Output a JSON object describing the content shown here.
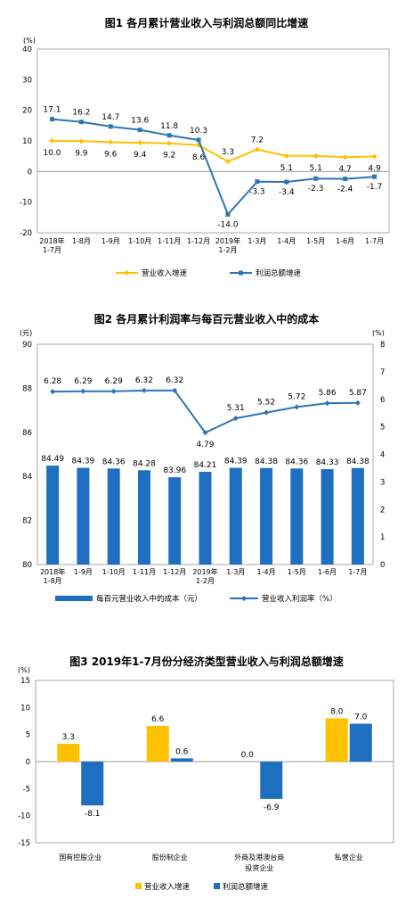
{
  "colors": {
    "orange": "#FFC000",
    "blue": "#2E75B6",
    "blue_bar": "#1F6FC0"
  },
  "chart_data": [
    {
      "type": "line",
      "title": "图1  各月累计营业收入与利润总额同比增速",
      "yunit": "(%)",
      "ylim": [
        -20,
        40
      ],
      "yticks": [
        "40",
        "30",
        "20",
        "10",
        "0",
        "-10",
        "-20"
      ],
      "categories": [
        [
          "2018年",
          "1-7月"
        ],
        [
          "1-8月"
        ],
        [
          "1-9月"
        ],
        [
          "1-10月"
        ],
        [
          "1-11月"
        ],
        [
          "1-12月"
        ],
        [
          "2019年",
          "1-2月"
        ],
        [
          "1-3月"
        ],
        [
          "1-4月"
        ],
        [
          "1-5月"
        ],
        [
          "1-6月"
        ],
        [
          "1-7月"
        ]
      ],
      "series": [
        {
          "name": "营业收入增速",
          "color": "#FFC000",
          "values": [
            10.0,
            9.9,
            9.6,
            9.4,
            9.2,
            8.6,
            3.3,
            7.2,
            5.1,
            5.1,
            4.7,
            4.9
          ],
          "labels": [
            "10.0",
            "9.9",
            "9.6",
            "9.4",
            "9.2",
            "8.6",
            "3.3",
            "7.2",
            "5.1",
            "5.1",
            "4.7",
            "4.9"
          ]
        },
        {
          "name": "利润总额增速",
          "color": "#2E75B6",
          "values": [
            17.1,
            16.2,
            14.7,
            13.6,
            11.8,
            10.3,
            -14.0,
            -3.3,
            -3.4,
            -2.3,
            -2.4,
            -1.7
          ],
          "labels": [
            "17.1",
            "16.2",
            "14.7",
            "13.6",
            "11.8",
            "10.3",
            "-14.0",
            "-3.3",
            "-3.4",
            "-2.3",
            "-2.4",
            "-1.7"
          ]
        }
      ],
      "legend": "bottom"
    },
    {
      "type": "bar",
      "title": "图2  各月累计利润率与每百元营业收入中的成本",
      "yunit_left": "(元)",
      "yunit_right": "(%)",
      "ylim_left": [
        80,
        90
      ],
      "ylim_right": [
        0,
        8
      ],
      "yticks_left": [
        "90",
        "88",
        "86",
        "84",
        "82",
        "80"
      ],
      "yticks_right": [
        "8",
        "7",
        "6",
        "5",
        "4",
        "3",
        "2",
        "1",
        "0"
      ],
      "categories": [
        [
          "2018年",
          "1-8月"
        ],
        [
          "1-9月"
        ],
        [
          "1-10月"
        ],
        [
          "1-11月"
        ],
        [
          "1-12月"
        ],
        [
          "2019年",
          "1-2月"
        ],
        [
          "1-3月"
        ],
        [
          "1-4月"
        ],
        [
          "1-5月"
        ],
        [
          "1-6月"
        ],
        [
          "1-7月"
        ]
      ],
      "series": [
        {
          "name": "每百元营业收入中的成本（元）",
          "axis": "left",
          "kind": "bar",
          "color": "#1F6FC0",
          "values": [
            84.49,
            84.39,
            84.36,
            84.28,
            83.96,
            84.21,
            84.39,
            84.38,
            84.36,
            84.33,
            84.38
          ],
          "labels": [
            "84.49",
            "84.39",
            "84.36",
            "84.28",
            "83.96",
            "84.21",
            "84.39",
            "84.38",
            "84.36",
            "84.33",
            "84.38"
          ]
        },
        {
          "name": "营业收入利润率（%）",
          "axis": "right",
          "kind": "line",
          "color": "#2E75B6",
          "values": [
            6.28,
            6.29,
            6.29,
            6.32,
            6.32,
            4.79,
            5.31,
            5.52,
            5.72,
            5.86,
            5.87
          ],
          "labels": [
            "6.28",
            "6.29",
            "6.29",
            "6.32",
            "6.32",
            "4.79",
            "5.31",
            "5.52",
            "5.72",
            "5.86",
            "5.87"
          ]
        }
      ],
      "legend": "bottom"
    },
    {
      "type": "bar",
      "title": "图3  2019年1-7月份分经济类型营业收入与利润总额增速",
      "yunit": "(%)",
      "ylim": [
        -15,
        15
      ],
      "yticks": [
        "15",
        "10",
        "5",
        "0",
        "-5",
        "-10",
        "-15"
      ],
      "categories": [
        [
          "国有控股企业"
        ],
        [
          "股份制企业"
        ],
        [
          "外商及港澳台商",
          "投资企业"
        ],
        [
          "私营企业"
        ]
      ],
      "series": [
        {
          "name": "营业收入增速",
          "color": "#FFC000",
          "values": [
            3.3,
            6.6,
            0.0,
            8.0
          ],
          "labels": [
            "3.3",
            "6.6",
            "0.0",
            "8.0"
          ]
        },
        {
          "name": "利润总额增速",
          "color": "#1F6FC0",
          "values": [
            -8.1,
            0.6,
            -6.9,
            7.0
          ],
          "labels": [
            "-8.1",
            "0.6",
            "-6.9",
            "7.0"
          ]
        }
      ],
      "legend": "bottom"
    }
  ]
}
